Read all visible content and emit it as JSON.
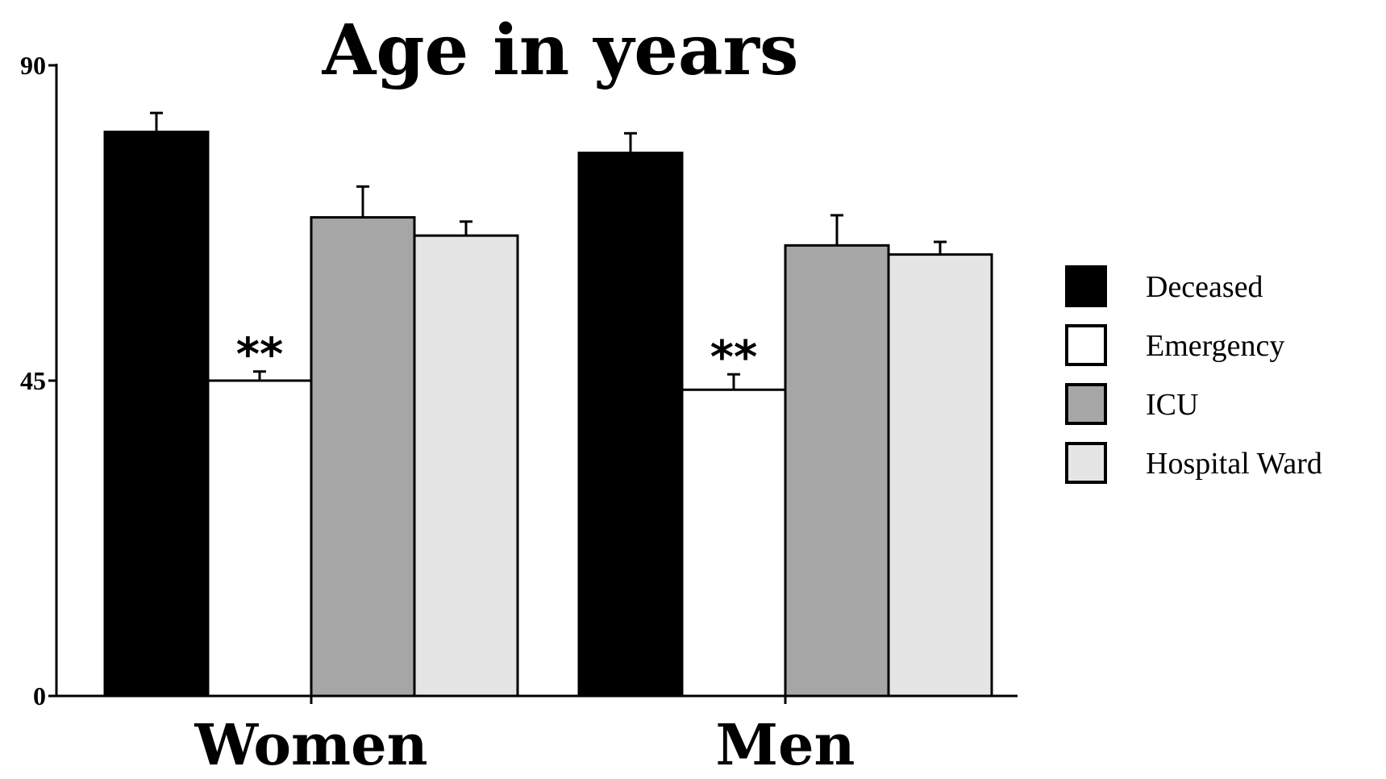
{
  "chart_data": {
    "type": "bar",
    "title": "Age in years",
    "xlabel": "",
    "ylabel": "",
    "categories": [
      "Women",
      "Men"
    ],
    "ylim": [
      0,
      90
    ],
    "yticks": [
      {
        "value": 0,
        "label": "0"
      },
      {
        "value": 45,
        "label": "45"
      },
      {
        "value": 90,
        "label": "90"
      }
    ],
    "grid": false,
    "legend_position": "right",
    "series": [
      {
        "name": "Deceased",
        "color": "#000000",
        "values": [
          80.5,
          77.5
        ],
        "errors": [
          2.7,
          2.8
        ]
      },
      {
        "name": "Emergency",
        "color": "#ffffff",
        "values": [
          45,
          43.7
        ],
        "errors": [
          1.3,
          2.2
        ]
      },
      {
        "name": "ICU",
        "color": "#a6a6a6",
        "values": [
          68.3,
          64.3
        ],
        "errors": [
          4.4,
          4.3
        ]
      },
      {
        "name": "Hospital Ward",
        "color": "#e6e5e6",
        "values": [
          65.7,
          63
        ],
        "errors": [
          2,
          1.8
        ]
      }
    ],
    "annotations": [
      {
        "text": "**",
        "category": "Women",
        "series": "Emergency"
      },
      {
        "text": "**",
        "category": "Men",
        "series": "Emergency"
      }
    ]
  }
}
